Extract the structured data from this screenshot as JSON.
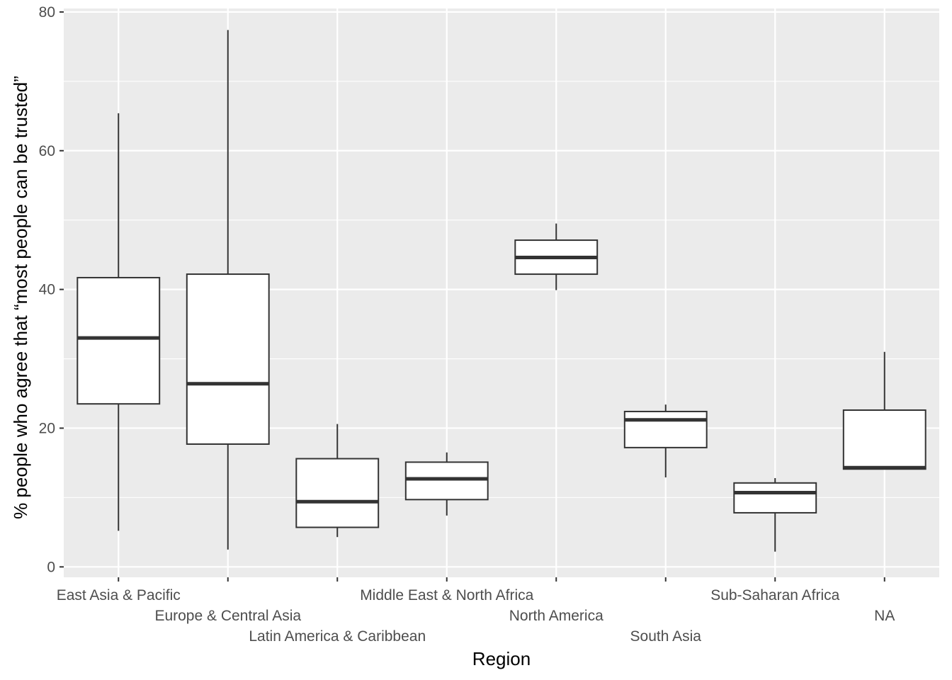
{
  "chart_data": {
    "type": "box",
    "xlabel": "Region",
    "ylabel": "% people who agree that “most people can be trusted”",
    "ylim": [
      -1.5,
      80.5
    ],
    "y_ticks": [
      0,
      20,
      40,
      60,
      80
    ],
    "grid": true,
    "categories": [
      "East Asia & Pacific",
      "Europe & Central Asia",
      "Latin America & Caribbean",
      "Middle East & North Africa",
      "North America",
      "South Asia",
      "Sub-Saharan Africa",
      "NA"
    ],
    "boxes": [
      {
        "category": "East Asia & Pacific",
        "min": 5.2,
        "q1": 23.5,
        "median": 33.0,
        "q3": 41.7,
        "max": 65.4
      },
      {
        "category": "Europe & Central Asia",
        "min": 2.5,
        "q1": 17.7,
        "median": 26.4,
        "q3": 42.2,
        "max": 77.4
      },
      {
        "category": "Latin America & Caribbean",
        "min": 4.3,
        "q1": 5.7,
        "median": 9.4,
        "q3": 15.6,
        "max": 20.6
      },
      {
        "category": "Middle East & North Africa",
        "min": 7.4,
        "q1": 9.7,
        "median": 12.7,
        "q3": 15.1,
        "max": 16.5
      },
      {
        "category": "North America",
        "min": 39.9,
        "q1": 42.2,
        "median": 44.6,
        "q3": 47.1,
        "max": 49.5
      },
      {
        "category": "South Asia",
        "min": 12.9,
        "q1": 17.2,
        "median": 21.2,
        "q3": 22.4,
        "max": 23.4
      },
      {
        "category": "Sub-Saharan Africa",
        "min": 2.2,
        "q1": 7.8,
        "median": 10.7,
        "q3": 12.1,
        "max": 12.8
      },
      {
        "category": "NA",
        "min": 14.1,
        "q1": 14.1,
        "median": 14.3,
        "q3": 22.6,
        "max": 31.0
      }
    ]
  }
}
